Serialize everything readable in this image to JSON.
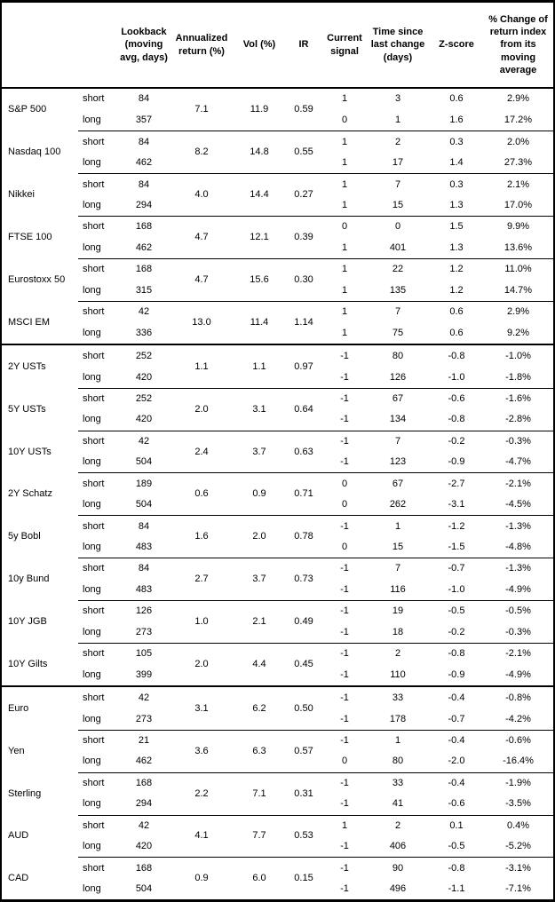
{
  "table": {
    "columns": [
      {
        "key": "asset",
        "label": ""
      },
      {
        "key": "position",
        "label": ""
      },
      {
        "key": "lookback",
        "label": "Lookback\n(moving\navg, days)"
      },
      {
        "key": "annualized_return",
        "label": "Annualized\nreturn (%)"
      },
      {
        "key": "vol",
        "label": "Vol (%)"
      },
      {
        "key": "ir",
        "label": "IR"
      },
      {
        "key": "current_signal",
        "label": "Current\nsignal"
      },
      {
        "key": "time_since_change",
        "label": "Time since\nlast change\n(days)"
      },
      {
        "key": "zscore",
        "label": "Z-score"
      },
      {
        "key": "pct_change",
        "label": "% Change of\nreturn index\nfrom its\nmoving\naverage"
      }
    ],
    "sections": [
      {
        "key": "equities",
        "groups": [
          {
            "asset": "S&P 500",
            "annualized_return": "7.1",
            "vol": "11.9",
            "ir": "0.59",
            "rows": [
              {
                "position": "short",
                "lookback": "84",
                "signal": "1",
                "time_since": "3",
                "zscore": "0.6",
                "pct_change": "2.9%"
              },
              {
                "position": "long",
                "lookback": "357",
                "signal": "0",
                "time_since": "1",
                "zscore": "1.6",
                "pct_change": "17.2%"
              }
            ]
          },
          {
            "asset": "Nasdaq 100",
            "annualized_return": "8.2",
            "vol": "14.8",
            "ir": "0.55",
            "rows": [
              {
                "position": "short",
                "lookback": "84",
                "signal": "1",
                "time_since": "2",
                "zscore": "0.3",
                "pct_change": "2.0%"
              },
              {
                "position": "long",
                "lookback": "462",
                "signal": "1",
                "time_since": "17",
                "zscore": "1.4",
                "pct_change": "27.3%"
              }
            ]
          },
          {
            "asset": "Nikkei",
            "annualized_return": "4.0",
            "vol": "14.4",
            "ir": "0.27",
            "rows": [
              {
                "position": "short",
                "lookback": "84",
                "signal": "1",
                "time_since": "7",
                "zscore": "0.3",
                "pct_change": "2.1%"
              },
              {
                "position": "long",
                "lookback": "294",
                "signal": "1",
                "time_since": "15",
                "zscore": "1.3",
                "pct_change": "17.0%"
              }
            ]
          },
          {
            "asset": "FTSE 100",
            "annualized_return": "4.7",
            "vol": "12.1",
            "ir": "0.39",
            "rows": [
              {
                "position": "short",
                "lookback": "168",
                "signal": "0",
                "time_since": "0",
                "zscore": "1.5",
                "pct_change": "9.9%"
              },
              {
                "position": "long",
                "lookback": "462",
                "signal": "1",
                "time_since": "401",
                "zscore": "1.3",
                "pct_change": "13.6%"
              }
            ]
          },
          {
            "asset": "Eurostoxx 50",
            "annualized_return": "4.7",
            "vol": "15.6",
            "ir": "0.30",
            "rows": [
              {
                "position": "short",
                "lookback": "168",
                "signal": "1",
                "time_since": "22",
                "zscore": "1.2",
                "pct_change": "11.0%"
              },
              {
                "position": "long",
                "lookback": "315",
                "signal": "1",
                "time_since": "135",
                "zscore": "1.2",
                "pct_change": "14.7%"
              }
            ]
          },
          {
            "asset": "MSCI EM",
            "annualized_return": "13.0",
            "vol": "11.4",
            "ir": "1.14",
            "rows": [
              {
                "position": "short",
                "lookback": "42",
                "signal": "1",
                "time_since": "7",
                "zscore": "0.6",
                "pct_change": "2.9%"
              },
              {
                "position": "long",
                "lookback": "336",
                "signal": "1",
                "time_since": "75",
                "zscore": "0.6",
                "pct_change": "9.2%"
              }
            ]
          }
        ]
      },
      {
        "key": "bonds",
        "groups": [
          {
            "asset": "2Y USTs",
            "annualized_return": "1.1",
            "vol": "1.1",
            "ir": "0.97",
            "rows": [
              {
                "position": "short",
                "lookback": "252",
                "signal": "-1",
                "time_since": "80",
                "zscore": "-0.8",
                "pct_change": "-1.0%"
              },
              {
                "position": "long",
                "lookback": "420",
                "signal": "-1",
                "time_since": "126",
                "zscore": "-1.0",
                "pct_change": "-1.8%"
              }
            ]
          },
          {
            "asset": "5Y USTs",
            "annualized_return": "2.0",
            "vol": "3.1",
            "ir": "0.64",
            "rows": [
              {
                "position": "short",
                "lookback": "252",
                "signal": "-1",
                "time_since": "67",
                "zscore": "-0.6",
                "pct_change": "-1.6%"
              },
              {
                "position": "long",
                "lookback": "420",
                "signal": "-1",
                "time_since": "134",
                "zscore": "-0.8",
                "pct_change": "-2.8%"
              }
            ]
          },
          {
            "asset": "10Y USTs",
            "annualized_return": "2.4",
            "vol": "3.7",
            "ir": "0.63",
            "rows": [
              {
                "position": "short",
                "lookback": "42",
                "signal": "-1",
                "time_since": "7",
                "zscore": "-0.2",
                "pct_change": "-0.3%"
              },
              {
                "position": "long",
                "lookback": "504",
                "signal": "-1",
                "time_since": "123",
                "zscore": "-0.9",
                "pct_change": "-4.7%"
              }
            ]
          },
          {
            "asset": "2Y Schatz",
            "annualized_return": "0.6",
            "vol": "0.9",
            "ir": "0.71",
            "rows": [
              {
                "position": "short",
                "lookback": "189",
                "signal": "0",
                "time_since": "67",
                "zscore": "-2.7",
                "pct_change": "-2.1%"
              },
              {
                "position": "long",
                "lookback": "504",
                "signal": "0",
                "time_since": "262",
                "zscore": "-3.1",
                "pct_change": "-4.5%"
              }
            ]
          },
          {
            "asset": "5y Bobl",
            "annualized_return": "1.6",
            "vol": "2.0",
            "ir": "0.78",
            "rows": [
              {
                "position": "short",
                "lookback": "84",
                "signal": "-1",
                "time_since": "1",
                "zscore": "-1.2",
                "pct_change": "-1.3%"
              },
              {
                "position": "long",
                "lookback": "483",
                "signal": "0",
                "time_since": "15",
                "zscore": "-1.5",
                "pct_change": "-4.8%"
              }
            ]
          },
          {
            "asset": "10y Bund",
            "annualized_return": "2.7",
            "vol": "3.7",
            "ir": "0.73",
            "rows": [
              {
                "position": "short",
                "lookback": "84",
                "signal": "-1",
                "time_since": "7",
                "zscore": "-0.7",
                "pct_change": "-1.3%"
              },
              {
                "position": "long",
                "lookback": "483",
                "signal": "-1",
                "time_since": "116",
                "zscore": "-1.0",
                "pct_change": "-4.9%"
              }
            ]
          },
          {
            "asset": "10Y JGB",
            "annualized_return": "1.0",
            "vol": "2.1",
            "ir": "0.49",
            "rows": [
              {
                "position": "short",
                "lookback": "126",
                "signal": "-1",
                "time_since": "19",
                "zscore": "-0.5",
                "pct_change": "-0.5%"
              },
              {
                "position": "long",
                "lookback": "273",
                "signal": "-1",
                "time_since": "18",
                "zscore": "-0.2",
                "pct_change": "-0.3%"
              }
            ]
          },
          {
            "asset": "10Y Gilts",
            "annualized_return": "2.0",
            "vol": "4.4",
            "ir": "0.45",
            "rows": [
              {
                "position": "short",
                "lookback": "105",
                "signal": "-1",
                "time_since": "2",
                "zscore": "-0.8",
                "pct_change": "-2.1%"
              },
              {
                "position": "long",
                "lookback": "399",
                "signal": "-1",
                "time_since": "110",
                "zscore": "-0.9",
                "pct_change": "-4.9%"
              }
            ]
          }
        ]
      },
      {
        "key": "fx",
        "groups": [
          {
            "asset": "Euro",
            "annualized_return": "3.1",
            "vol": "6.2",
            "ir": "0.50",
            "rows": [
              {
                "position": "short",
                "lookback": "42",
                "signal": "-1",
                "time_since": "33",
                "zscore": "-0.4",
                "pct_change": "-0.8%"
              },
              {
                "position": "long",
                "lookback": "273",
                "signal": "-1",
                "time_since": "178",
                "zscore": "-0.7",
                "pct_change": "-4.2%"
              }
            ]
          },
          {
            "asset": "Yen",
            "annualized_return": "3.6",
            "vol": "6.3",
            "ir": "0.57",
            "rows": [
              {
                "position": "short",
                "lookback": "21",
                "signal": "-1",
                "time_since": "1",
                "zscore": "-0.4",
                "pct_change": "-0.6%"
              },
              {
                "position": "long",
                "lookback": "462",
                "signal": "0",
                "time_since": "80",
                "zscore": "-2.0",
                "pct_change": "-16.4%"
              }
            ]
          },
          {
            "asset": "Sterling",
            "annualized_return": "2.2",
            "vol": "7.1",
            "ir": "0.31",
            "rows": [
              {
                "position": "short",
                "lookback": "168",
                "signal": "-1",
                "time_since": "33",
                "zscore": "-0.4",
                "pct_change": "-1.9%"
              },
              {
                "position": "long",
                "lookback": "294",
                "signal": "-1",
                "time_since": "41",
                "zscore": "-0.6",
                "pct_change": "-3.5%"
              }
            ]
          },
          {
            "asset": "AUD",
            "annualized_return": "4.1",
            "vol": "7.7",
            "ir": "0.53",
            "rows": [
              {
                "position": "short",
                "lookback": "42",
                "signal": "1",
                "time_since": "2",
                "zscore": "0.1",
                "pct_change": "0.4%"
              },
              {
                "position": "long",
                "lookback": "420",
                "signal": "-1",
                "time_since": "406",
                "zscore": "-0.5",
                "pct_change": "-5.2%"
              }
            ]
          },
          {
            "asset": "CAD",
            "annualized_return": "0.9",
            "vol": "6.0",
            "ir": "0.15",
            "rows": [
              {
                "position": "short",
                "lookback": "168",
                "signal": "-1",
                "time_since": "90",
                "zscore": "-0.8",
                "pct_change": "-3.1%"
              },
              {
                "position": "long",
                "lookback": "504",
                "signal": "-1",
                "time_since": "496",
                "zscore": "-1.1",
                "pct_change": "-7.1%"
              }
            ]
          }
        ]
      }
    ]
  }
}
